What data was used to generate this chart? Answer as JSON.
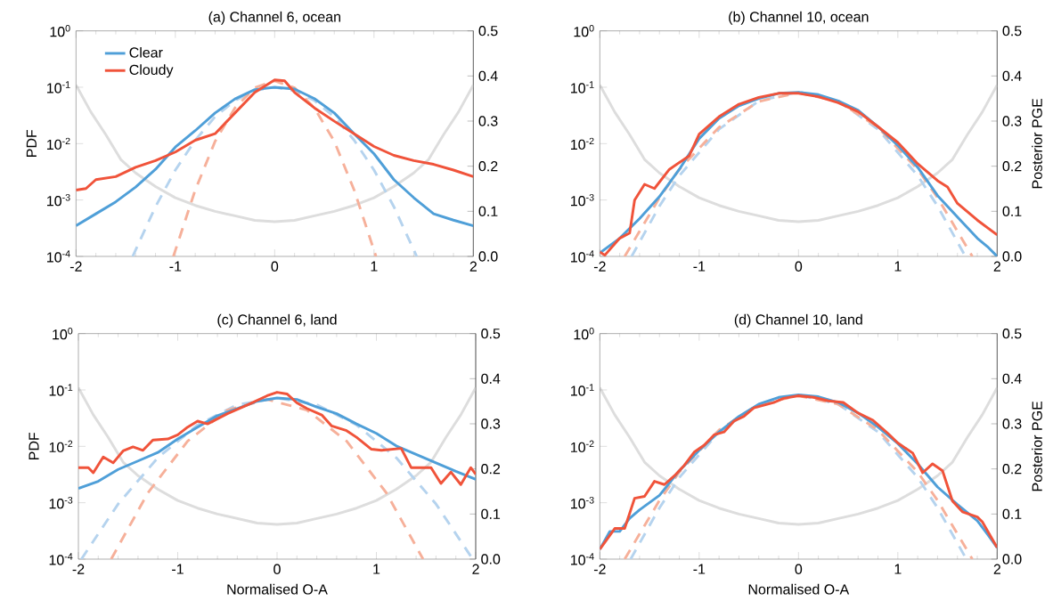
{
  "chart_data": [
    {
      "type": "line",
      "title": "(a) Channel 6, ocean",
      "ylabel": "PDF",
      "log": true,
      "legend": "top left",
      "xlim": [
        -2,
        2
      ],
      "xticks": [
        -2,
        -1,
        0,
        1,
        2
      ],
      "ylim": [
        0.0001,
        1
      ],
      "yticks": [
        {
          "value": 0.0001,
          "label": "10$^{-4}$"
        },
        {
          "value": 0.001,
          "label": "10$^{-3}$"
        },
        {
          "value": 0.01,
          "label": "10$^{-2}$"
        },
        {
          "value": 0.1,
          "label": "10$^{-1}$"
        },
        {
          "value": 1,
          "label": "10$^{0}$"
        }
      ],
      "y2lim": [
        0,
        0.5
      ],
      "y2ticks": [
        {
          "value": 0,
          "label": "0.0"
        },
        {
          "value": 0.1,
          "label": "0.1"
        },
        {
          "value": 0.2,
          "label": "0.2"
        },
        {
          "value": 0.3,
          "label": "0.3"
        },
        {
          "value": 0.4,
          "label": "0.4"
        },
        {
          "value": 0.5,
          "label": "0.5"
        }
      ],
      "series": [
        {
          "axis": "y2",
          "color": "#dddddd",
          "line_style": "solid",
          "x": [
            -2,
            -1.85,
            -1.7,
            -1.55,
            -1.4,
            -1.2,
            -1,
            -0.8,
            -0.6,
            -0.4,
            -0.2,
            0,
            0.2,
            0.4,
            0.6,
            0.8,
            1,
            1.2,
            1.4,
            1.55,
            1.7,
            1.85,
            2
          ],
          "values": [
            0.38,
            0.32,
            0.27,
            0.215,
            0.185,
            0.155,
            0.13,
            0.113,
            0.1,
            0.09,
            0.08,
            0.077,
            0.08,
            0.09,
            0.1,
            0.113,
            0.13,
            0.155,
            0.185,
            0.215,
            0.27,
            0.32,
            0.38
          ]
        },
        {
          "color": "#b5d3ee",
          "line_style": "dashed",
          "x": [
            -1.43,
            -1.2,
            -1,
            -0.8,
            -0.6,
            -0.4,
            -0.2,
            0,
            0.2,
            0.4,
            0.6,
            0.8,
            1,
            1.2,
            1.43
          ],
          "values": [
            0.0001,
            0.00076,
            0.0034,
            0.0115,
            0.03,
            0.058,
            0.087,
            0.1,
            0.087,
            0.058,
            0.03,
            0.0115,
            0.0034,
            0.00076,
            0.0001
          ]
        },
        {
          "color": "#f6b09a",
          "line_style": "dashed",
          "x": [
            -1.02,
            -0.8,
            -0.6,
            -0.4,
            -0.2,
            0,
            0.2,
            0.4,
            0.6,
            0.8,
            1.02
          ],
          "values": [
            0.0001,
            0.0015,
            0.011,
            0.043,
            0.098,
            0.13,
            0.098,
            0.043,
            0.011,
            0.0015,
            0.0001
          ]
        },
        {
          "name": "Clear",
          "color": "#4f9fd8",
          "line_style": "solid",
          "x": [
            -2,
            -1.8,
            -1.6,
            -1.4,
            -1.2,
            -1,
            -0.8,
            -0.6,
            -0.4,
            -0.2,
            0,
            0.2,
            0.4,
            0.6,
            0.8,
            1,
            1.2,
            1.4,
            1.6,
            1.8,
            2
          ],
          "values": [
            0.00035,
            0.00057,
            0.00093,
            0.0017,
            0.0035,
            0.0087,
            0.017,
            0.035,
            0.062,
            0.091,
            0.1,
            0.093,
            0.063,
            0.035,
            0.015,
            0.0066,
            0.0023,
            0.0011,
            0.00057,
            0.00044,
            0.00035
          ]
        },
        {
          "name": "Cloudy",
          "color": "#f0533a",
          "line_style": "solid",
          "x": [
            -2,
            -1.9,
            -1.8,
            -1.6,
            -1.4,
            -1.2,
            -1,
            -0.8,
            -0.6,
            -0.4,
            -0.2,
            0,
            0.1,
            0.2,
            0.4,
            0.6,
            0.8,
            1,
            1.2,
            1.4,
            1.6,
            1.8,
            2
          ],
          "values": [
            0.0015,
            0.0016,
            0.0023,
            0.0026,
            0.0038,
            0.005,
            0.0071,
            0.0115,
            0.015,
            0.035,
            0.081,
            0.135,
            0.13,
            0.081,
            0.043,
            0.025,
            0.015,
            0.0089,
            0.0062,
            0.005,
            0.0043,
            0.0034,
            0.0026
          ]
        }
      ]
    },
    {
      "type": "line",
      "title": "(b) Channel 10, ocean",
      "y2label": "Posterior PGE",
      "log": true,
      "xlim": [
        -2,
        2
      ],
      "xticks": [
        -2,
        -1,
        0,
        1,
        2
      ],
      "ylim": [
        0.0001,
        1
      ],
      "yticks": [
        {
          "value": 0.0001,
          "label": "10$^{-4}$"
        },
        {
          "value": 0.001,
          "label": "10$^{-3}$"
        },
        {
          "value": 0.01,
          "label": "10$^{-2}$"
        },
        {
          "value": 0.1,
          "label": "10$^{-1}$"
        },
        {
          "value": 1,
          "label": "10$^{0}$"
        }
      ],
      "y2lim": [
        0,
        0.5
      ],
      "y2ticks": [
        {
          "value": 0,
          "label": "0.0"
        },
        {
          "value": 0.1,
          "label": "0.1"
        },
        {
          "value": 0.2,
          "label": "0.2"
        },
        {
          "value": 0.3,
          "label": "0.3"
        },
        {
          "value": 0.4,
          "label": "0.4"
        },
        {
          "value": 0.5,
          "label": "0.5"
        }
      ],
      "series": [
        {
          "axis": "y2",
          "color": "#dddddd",
          "line_style": "solid",
          "x": [
            -2,
            -1.85,
            -1.7,
            -1.55,
            -1.4,
            -1.2,
            -1,
            -0.8,
            -0.6,
            -0.4,
            -0.2,
            0,
            0.2,
            0.4,
            0.6,
            0.8,
            1,
            1.2,
            1.4,
            1.55,
            1.7,
            1.85,
            2
          ],
          "values": [
            0.38,
            0.32,
            0.27,
            0.215,
            0.185,
            0.155,
            0.13,
            0.113,
            0.1,
            0.09,
            0.08,
            0.077,
            0.08,
            0.09,
            0.1,
            0.113,
            0.13,
            0.155,
            0.185,
            0.215,
            0.27,
            0.32,
            0.38
          ]
        },
        {
          "color": "#b5d3ee",
          "line_style": "dashed",
          "x": [
            -1.68,
            -1.4,
            -1.2,
            -0.8,
            -0.4,
            0,
            0.4,
            0.8,
            1.2,
            1.4,
            1.68
          ],
          "values": [
            0.0001,
            0.00078,
            0.0027,
            0.018,
            0.057,
            0.083,
            0.057,
            0.018,
            0.0027,
            0.00078,
            0.0001
          ]
        },
        {
          "color": "#f6b09a",
          "line_style": "dashed",
          "x": [
            -1.75,
            -1.4,
            -1.2,
            -0.8,
            -0.4,
            0,
            0.4,
            0.8,
            1.2,
            1.4,
            1.75
          ],
          "values": [
            0.0001,
            0.0011,
            0.0035,
            0.0195,
            0.056,
            0.08,
            0.056,
            0.0195,
            0.0035,
            0.0011,
            0.0001
          ]
        },
        {
          "name": null,
          "color": "#4f9fd8",
          "line_style": "solid",
          "x": [
            -2,
            -1.8,
            -1.6,
            -1.4,
            -1.2,
            -1,
            -0.8,
            -0.6,
            -0.4,
            -0.2,
            0,
            0.2,
            0.4,
            0.6,
            0.8,
            1,
            1.2,
            1.4,
            1.6,
            1.8,
            1.9,
            2
          ],
          "values": [
            0.000115,
            0.00021,
            0.00047,
            0.00115,
            0.0035,
            0.0123,
            0.028,
            0.047,
            0.063,
            0.078,
            0.081,
            0.074,
            0.057,
            0.039,
            0.02,
            0.0093,
            0.0038,
            0.0012,
            0.0005,
            0.00021,
            0.00015,
            0.0001
          ]
        },
        {
          "name": null,
          "color": "#f0533a",
          "line_style": "solid",
          "x": [
            -2,
            -1.95,
            -1.8,
            -1.7,
            -1.65,
            -1.55,
            -1.45,
            -1.3,
            -1.1,
            -1,
            -0.8,
            -0.6,
            -0.4,
            -0.2,
            0,
            0.2,
            0.4,
            0.6,
            0.8,
            1,
            1.2,
            1.4,
            1.5,
            1.6,
            1.8,
            2
          ],
          "values": [
            0.00012,
            0.000105,
            0.00021,
            0.00026,
            0.001,
            0.0019,
            0.0016,
            0.0035,
            0.0061,
            0.0148,
            0.03,
            0.05,
            0.066,
            0.078,
            0.078,
            0.068,
            0.053,
            0.037,
            0.02,
            0.0105,
            0.0044,
            0.0022,
            0.0017,
            0.00087,
            0.00044,
            0.00024
          ]
        }
      ]
    },
    {
      "type": "line",
      "title": "(c) Channel 6, land",
      "xlabel": "Normalised O-A",
      "ylabel": "PDF",
      "log": true,
      "xlim": [
        -2,
        2
      ],
      "xticks": [
        -2,
        -1,
        0,
        1,
        2
      ],
      "ylim": [
        0.0001,
        1
      ],
      "yticks": [
        {
          "value": 0.0001,
          "label": "10$^{-4}$"
        },
        {
          "value": 0.001,
          "label": "10$^{-3}$"
        },
        {
          "value": 0.01,
          "label": "10$^{-2}$"
        },
        {
          "value": 0.1,
          "label": "10$^{-1}$"
        },
        {
          "value": 1,
          "label": "10$^{0}$"
        }
      ],
      "y2lim": [
        0,
        0.5
      ],
      "y2ticks": [
        {
          "value": 0,
          "label": "0.0"
        },
        {
          "value": 0.1,
          "label": "0.1"
        },
        {
          "value": 0.2,
          "label": "0.2"
        },
        {
          "value": 0.3,
          "label": "0.3"
        },
        {
          "value": 0.4,
          "label": "0.4"
        },
        {
          "value": 0.5,
          "label": "0.5"
        }
      ],
      "series": [
        {
          "axis": "y2",
          "color": "#dddddd",
          "line_style": "solid",
          "x": [
            -2,
            -1.85,
            -1.7,
            -1.55,
            -1.4,
            -1.2,
            -1,
            -0.8,
            -0.6,
            -0.4,
            -0.2,
            0,
            0.2,
            0.4,
            0.6,
            0.8,
            1,
            1.2,
            1.4,
            1.55,
            1.7,
            1.85,
            2
          ],
          "values": [
            0.38,
            0.32,
            0.27,
            0.215,
            0.185,
            0.155,
            0.13,
            0.113,
            0.1,
            0.09,
            0.08,
            0.077,
            0.08,
            0.09,
            0.1,
            0.113,
            0.13,
            0.155,
            0.185,
            0.215,
            0.27,
            0.32,
            0.38
          ]
        },
        {
          "color": "#b5d3ee",
          "line_style": "dashed",
          "x": [
            -1.97,
            -1.6,
            -1.2,
            -0.8,
            -0.4,
            0,
            0.4,
            0.8,
            1.2,
            1.6,
            1.97
          ],
          "values": [
            0.0001,
            0.00095,
            0.0063,
            0.024,
            0.055,
            0.072,
            0.055,
            0.024,
            0.0063,
            0.00095,
            0.0001
          ]
        },
        {
          "color": "#f6b09a",
          "line_style": "dashed",
          "x": [
            -1.67,
            -1.3,
            -0.9,
            -0.5,
            -0.1,
            0.3,
            0.7,
            1.1,
            1.47
          ],
          "values": [
            0.0001,
            0.0015,
            0.0124,
            0.044,
            0.068,
            0.044,
            0.0124,
            0.0015,
            0.0001
          ]
        },
        {
          "name": null,
          "color": "#4f9fd8",
          "line_style": "solid",
          "x": [
            -2,
            -1.8,
            -1.6,
            -1.4,
            -1.2,
            -1,
            -0.8,
            -0.6,
            -0.4,
            -0.2,
            0,
            0.2,
            0.4,
            0.6,
            0.8,
            1,
            1.2,
            1.4,
            1.6,
            1.8,
            2
          ],
          "values": [
            0.0018,
            0.0024,
            0.0039,
            0.0055,
            0.0078,
            0.0135,
            0.022,
            0.035,
            0.047,
            0.063,
            0.072,
            0.068,
            0.05,
            0.038,
            0.025,
            0.017,
            0.0102,
            0.0072,
            0.0051,
            0.0036,
            0.0026
          ]
        },
        {
          "name": null,
          "color": "#f0533a",
          "line_style": "solid",
          "x": [
            -2,
            -1.9,
            -1.85,
            -1.75,
            -1.65,
            -1.55,
            -1.45,
            -1.35,
            -1.25,
            -1.1,
            -1,
            -0.9,
            -0.8,
            -0.7,
            -0.5,
            -0.3,
            -0.1,
            0,
            0.1,
            0.2,
            0.3,
            0.45,
            0.55,
            0.7,
            0.8,
            0.95,
            1.05,
            1.25,
            1.35,
            1.55,
            1.65,
            1.75,
            1.85,
            1.95,
            2
          ],
          "values": [
            0.0042,
            0.0042,
            0.0034,
            0.0065,
            0.0051,
            0.0083,
            0.0098,
            0.0085,
            0.0129,
            0.0135,
            0.016,
            0.022,
            0.028,
            0.025,
            0.038,
            0.054,
            0.079,
            0.091,
            0.085,
            0.059,
            0.047,
            0.036,
            0.023,
            0.019,
            0.0145,
            0.0089,
            0.0085,
            0.0092,
            0.0042,
            0.0042,
            0.0022,
            0.0035,
            0.0021,
            0.0042,
            0.0032
          ]
        }
      ]
    },
    {
      "type": "line",
      "title": "(d) Channel 10, land",
      "xlabel": "Normalised O-A",
      "y2label": "Posterior PGE",
      "log": true,
      "xlim": [
        -2,
        2
      ],
      "xticks": [
        -2,
        -1,
        0,
        1,
        2
      ],
      "ylim": [
        0.0001,
        1
      ],
      "yticks": [
        {
          "value": 0.0001,
          "label": "10$^{-4}$"
        },
        {
          "value": 0.001,
          "label": "10$^{-3}$"
        },
        {
          "value": 0.01,
          "label": "10$^{-2}$"
        },
        {
          "value": 0.1,
          "label": "10$^{-1}$"
        },
        {
          "value": 1,
          "label": "10$^{0}$"
        }
      ],
      "y2lim": [
        0,
        0.5
      ],
      "y2ticks": [
        {
          "value": 0,
          "label": "0.0"
        },
        {
          "value": 0.1,
          "label": "0.1"
        },
        {
          "value": 0.2,
          "label": "0.2"
        },
        {
          "value": 0.3,
          "label": "0.3"
        },
        {
          "value": 0.4,
          "label": "0.4"
        },
        {
          "value": 0.5,
          "label": "0.5"
        }
      ],
      "series": [
        {
          "axis": "y2",
          "color": "#dddddd",
          "line_style": "solid",
          "x": [
            -2,
            -1.85,
            -1.7,
            -1.55,
            -1.4,
            -1.2,
            -1,
            -0.8,
            -0.6,
            -0.4,
            -0.2,
            0,
            0.2,
            0.4,
            0.6,
            0.8,
            1,
            1.2,
            1.4,
            1.55,
            1.7,
            1.85,
            2
          ],
          "values": [
            0.38,
            0.32,
            0.27,
            0.215,
            0.185,
            0.155,
            0.13,
            0.113,
            0.1,
            0.09,
            0.08,
            0.077,
            0.08,
            0.09,
            0.1,
            0.113,
            0.13,
            0.155,
            0.185,
            0.215,
            0.27,
            0.32,
            0.38
          ]
        },
        {
          "color": "#b5d3ee",
          "line_style": "dashed",
          "x": [
            -1.69,
            -1.4,
            -1.2,
            -0.8,
            -0.4,
            0,
            0.4,
            0.8,
            1.2,
            1.4,
            1.69
          ],
          "values": [
            0.0001,
            0.00081,
            0.0028,
            0.018,
            0.056,
            0.082,
            0.056,
            0.018,
            0.0028,
            0.00081,
            0.0001
          ]
        },
        {
          "color": "#f6b09a",
          "line_style": "dashed",
          "x": [
            -1.75,
            -1.4,
            -1.2,
            -0.8,
            -0.4,
            0,
            0.4,
            0.8,
            1.2,
            1.4,
            1.75
          ],
          "values": [
            0.0001,
            0.0011,
            0.0035,
            0.0195,
            0.056,
            0.079,
            0.056,
            0.0195,
            0.0035,
            0.0011,
            0.0001
          ]
        },
        {
          "name": null,
          "color": "#4f9fd8",
          "line_style": "solid",
          "x": [
            -2,
            -1.9,
            -1.8,
            -1.7,
            -1.6,
            -1.4,
            -1.2,
            -1,
            -0.8,
            -0.6,
            -0.4,
            -0.2,
            0,
            0.2,
            0.4,
            0.6,
            0.8,
            1,
            1.2,
            1.4,
            1.6,
            1.8,
            1.9,
            2
          ],
          "values": [
            0.00015,
            0.00031,
            0.00031,
            0.00053,
            0.00075,
            0.00135,
            0.0037,
            0.0085,
            0.018,
            0.034,
            0.056,
            0.074,
            0.082,
            0.076,
            0.06,
            0.039,
            0.022,
            0.0112,
            0.0049,
            0.0019,
            0.00093,
            0.00048,
            0.00028,
            0.00016
          ]
        },
        {
          "name": null,
          "color": "#f0533a",
          "line_style": "solid",
          "x": [
            -2,
            -1.85,
            -1.75,
            -1.65,
            -1.55,
            -1.45,
            -1.35,
            -1.25,
            -1.15,
            -1.05,
            -0.95,
            -0.85,
            -0.75,
            -0.65,
            -0.55,
            -0.45,
            -0.25,
            -0.15,
            0,
            0.15,
            0.3,
            0.45,
            0.6,
            0.75,
            0.9,
            1,
            1.15,
            1.25,
            1.35,
            1.45,
            1.55,
            1.65,
            1.8,
            1.85,
            2
          ],
          "values": [
            0.00015,
            0.00035,
            0.00035,
            0.0012,
            0.0013,
            0.0024,
            0.0021,
            0.003,
            0.0046,
            0.0079,
            0.0105,
            0.016,
            0.018,
            0.028,
            0.034,
            0.048,
            0.06,
            0.071,
            0.079,
            0.074,
            0.064,
            0.06,
            0.039,
            0.029,
            0.017,
            0.0115,
            0.0076,
            0.0034,
            0.0049,
            0.0037,
            0.00107,
            0.00069,
            0.00056,
            0.00046,
            0.00016
          ]
        }
      ]
    }
  ]
}
